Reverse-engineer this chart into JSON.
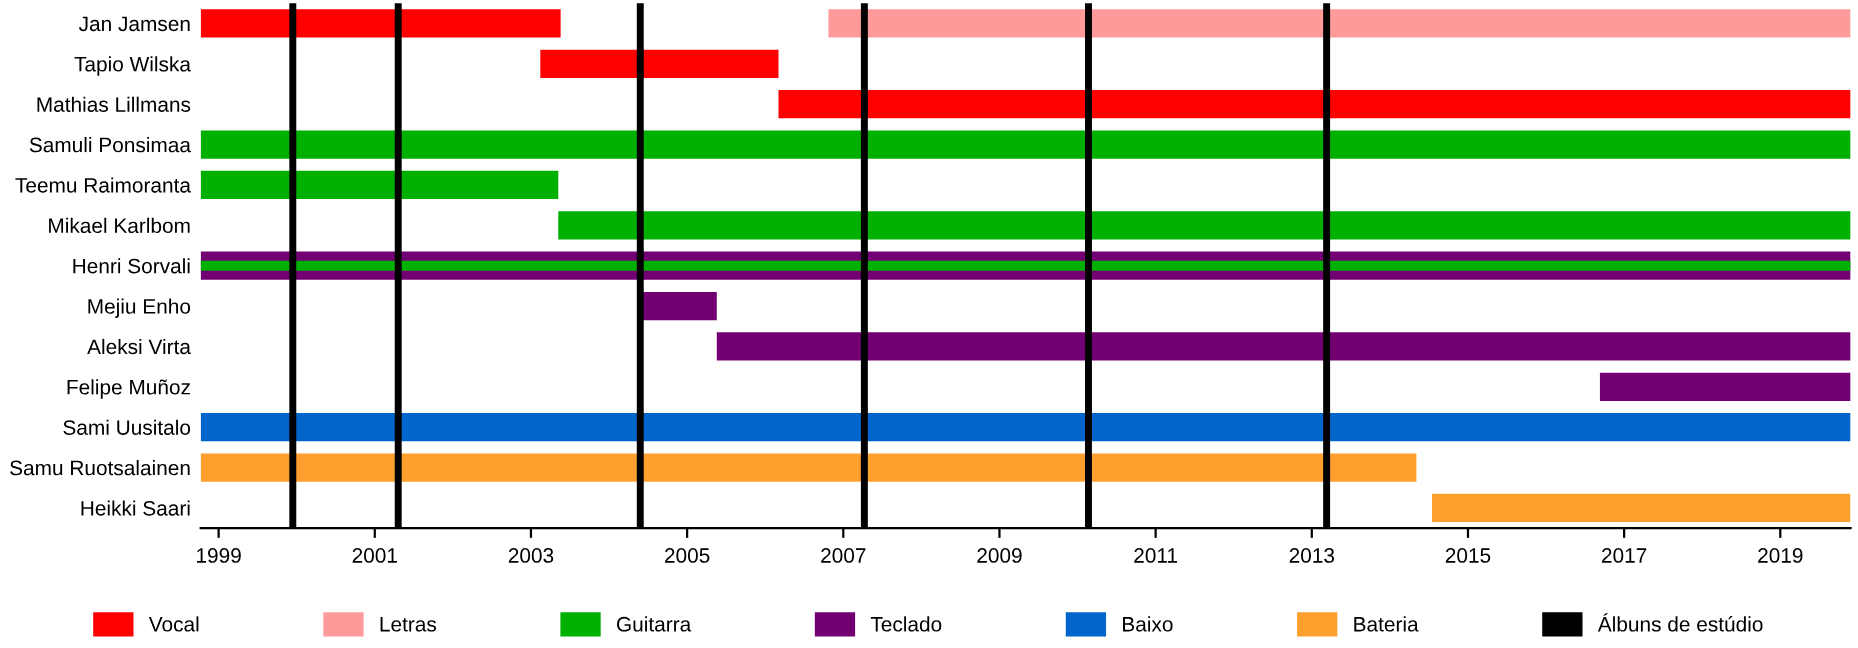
{
  "chart_data": {
    "type": "bar",
    "orientation": "horizontal",
    "categories": [
      "Jan Jamsen",
      "Tapio Wilska",
      "Mathias Lillmans",
      "Samuli Ponsimaa",
      "Teemu Raimoranta",
      "Mikael Karlbom",
      "Henri Sorvali",
      "Mejiu Enho",
      "Aleksi Virta",
      "Felipe Muñoz",
      "Sami Uusitalo",
      "Samu Ruotsalainen",
      "Heikki Saari"
    ],
    "series": [
      {
        "name": "Vocal",
        "color": "#ff0000",
        "base": [
          1998.77,
          2003.12,
          2006.17,
          null,
          null,
          null,
          null,
          null,
          null,
          null,
          null,
          null,
          null
        ],
        "values": [
          4.61,
          3.05,
          13.73,
          null,
          null,
          null,
          null,
          null,
          null,
          null,
          null,
          null,
          null
        ]
      },
      {
        "name": "Letras",
        "color": "#ff9a9a",
        "base": [
          2006.81,
          null,
          null,
          null,
          null,
          null,
          null,
          null,
          null,
          null,
          null,
          null,
          null
        ],
        "values": [
          13.09,
          null,
          null,
          null,
          null,
          null,
          null,
          null,
          null,
          null,
          null,
          null,
          null
        ]
      },
      {
        "name": "Guitarra",
        "color": "#00b000",
        "base": [
          null,
          null,
          null,
          1998.77,
          1998.77,
          2003.35,
          1998.77,
          null,
          null,
          null,
          null,
          null,
          null
        ],
        "values": [
          null,
          null,
          null,
          21.13,
          4.58,
          16.55,
          21.13,
          null,
          null,
          null,
          null,
          null,
          null
        ]
      },
      {
        "name": "Teclado",
        "color": "#730073",
        "base": [
          null,
          null,
          null,
          null,
          null,
          null,
          1998.77,
          2004.4,
          2005.38,
          2016.69,
          null,
          null,
          null
        ],
        "values": [
          null,
          null,
          null,
          null,
          null,
          null,
          21.13,
          0.98,
          14.52,
          3.21,
          null,
          null,
          null
        ]
      },
      {
        "name": "Baixo",
        "color": "#0066cc",
        "base": [
          null,
          null,
          null,
          null,
          null,
          null,
          null,
          null,
          null,
          null,
          1998.77,
          null,
          null
        ],
        "values": [
          null,
          null,
          null,
          null,
          null,
          null,
          null,
          null,
          null,
          null,
          21.13,
          null,
          null
        ]
      },
      {
        "name": "Bateria",
        "color": "#ff9f2e",
        "base": [
          null,
          null,
          null,
          null,
          null,
          null,
          null,
          null,
          null,
          null,
          null,
          1998.77,
          2014.54
        ],
        "values": [
          null,
          null,
          null,
          null,
          null,
          null,
          null,
          null,
          null,
          null,
          null,
          15.57,
          5.36
        ]
      }
    ],
    "ref_lines": [
      {
        "axis": "x",
        "value": 1999.95,
        "label": "Álbuns de estúdio",
        "color": "#000000"
      },
      {
        "axis": "x",
        "value": 2001.3,
        "label": null,
        "color": "#000000"
      },
      {
        "axis": "x",
        "value": 2004.4,
        "label": null,
        "color": "#000000"
      },
      {
        "axis": "x",
        "value": 2007.27,
        "label": null,
        "color": "#000000"
      },
      {
        "axis": "x",
        "value": 2010.14,
        "label": null,
        "color": "#000000"
      },
      {
        "axis": "x",
        "value": 2013.19,
        "label": null,
        "color": "#000000"
      }
    ],
    "xlim": [
      1998.77,
      2019.9
    ],
    "xticks": [
      1999,
      2001,
      2003,
      2005,
      2007,
      2009,
      2011,
      2013,
      2015,
      2017,
      2019
    ],
    "legend": "bottom",
    "grid": false
  }
}
